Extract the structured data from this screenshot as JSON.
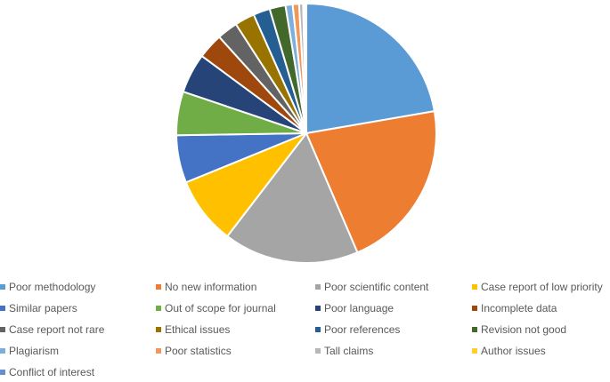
{
  "chart_data": {
    "type": "pie",
    "title": "",
    "legend_position": "bottom",
    "categories": [
      "Poor methodology",
      "No new information",
      "Poor scientific content",
      "Case report of low priority",
      "Similar papers",
      "Out of scope for journal",
      "Poor language",
      "Incomplete data",
      "Case report not rare",
      "Ethical issues",
      "Poor references",
      "Revision not good",
      "Plagiarism",
      "Poor statistics",
      "Tall claims",
      "Author issues",
      "Conflict of interest"
    ],
    "values": [
      22.5,
      21.5,
      17.0,
      8.5,
      6.0,
      5.5,
      5.0,
      3.2,
      2.6,
      2.5,
      2.1,
      2.0,
      0.9,
      0.8,
      0.5,
      0.2,
      0.2
    ],
    "colors": [
      "#5b9bd5",
      "#ed7d31",
      "#a5a5a5",
      "#ffc000",
      "#4472c4",
      "#70ad47",
      "#264478",
      "#9e480e",
      "#636363",
      "#997300",
      "#255e91",
      "#43682b",
      "#7cafdd",
      "#f1975a",
      "#b7b7b7",
      "#ffcd33",
      "#698ed0"
    ]
  }
}
